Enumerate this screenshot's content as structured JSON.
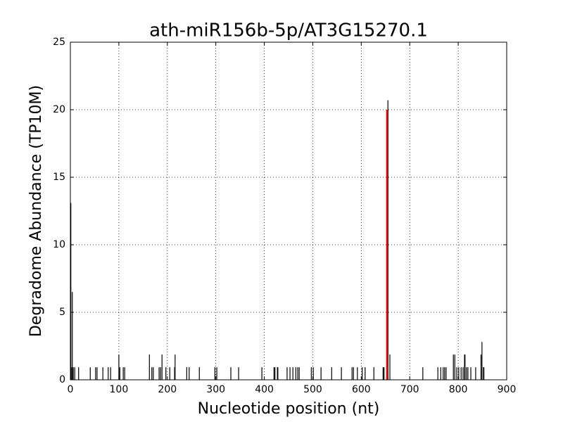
{
  "chart_data": {
    "type": "spike",
    "title": "ath-miR156b-5p/AT3G15270.1",
    "xlabel": "Nucleotide position (nt)",
    "ylabel": "Degradome Abundance (TP10M)",
    "xlim": [
      0,
      900
    ],
    "xticks": [
      0,
      100,
      200,
      300,
      400,
      500,
      600,
      700,
      800,
      900
    ],
    "ylim": [
      0,
      25
    ],
    "yticks": [
      0,
      5,
      10,
      15,
      20,
      25
    ],
    "grid": true,
    "series": [
      {
        "color": "#000000",
        "x": [
          1,
          3,
          4,
          6,
          9,
          17,
          41,
          52,
          55,
          67,
          78,
          83,
          100,
          102,
          109,
          112,
          163,
          168,
          171,
          183,
          186,
          189,
          197,
          205,
          215,
          216,
          240,
          245,
          266,
          298,
          302,
          331,
          347,
          395,
          420,
          422,
          427,
          428,
          447,
          453,
          459,
          465,
          469,
          472,
          497,
          501,
          517,
          539,
          559,
          581,
          584,
          592,
          602,
          608,
          626,
          645,
          647,
          655,
          659,
          727,
          758,
          764,
          769,
          772,
          775,
          790,
          793,
          797,
          801,
          806,
          810,
          813,
          814,
          817,
          820,
          826,
          836,
          847,
          849,
          852,
          853
        ],
        "values": [
          13.1,
          0.93,
          6.5,
          0.93,
          0.93,
          0.93,
          0.93,
          0.93,
          0.93,
          0.93,
          0.93,
          0.93,
          1.87,
          0.93,
          0.93,
          0.93,
          1.87,
          0.93,
          0.93,
          0.93,
          0.93,
          1.87,
          0.93,
          0.93,
          0.93,
          1.87,
          0.93,
          0.93,
          0.93,
          0.93,
          0.93,
          0.93,
          0.93,
          0.93,
          0.93,
          0.93,
          0.93,
          0.93,
          0.93,
          0.93,
          0.93,
          0.93,
          0.93,
          0.93,
          0.93,
          0.93,
          0.93,
          0.93,
          0.93,
          0.93,
          0.93,
          0.93,
          0.93,
          0.93,
          0.93,
          0.93,
          0.93,
          20.7,
          1.87,
          0.93,
          0.93,
          0.93,
          0.93,
          0.93,
          0.93,
          1.87,
          1.87,
          0.93,
          0.93,
          0.93,
          0.93,
          1.87,
          1.87,
          0.93,
          0.93,
          0.93,
          0.93,
          1.87,
          2.8,
          0.93,
          0.93
        ]
      },
      {
        "color": "#ff0000",
        "x": [
          653
        ],
        "values": [
          20.0
        ]
      }
    ]
  }
}
